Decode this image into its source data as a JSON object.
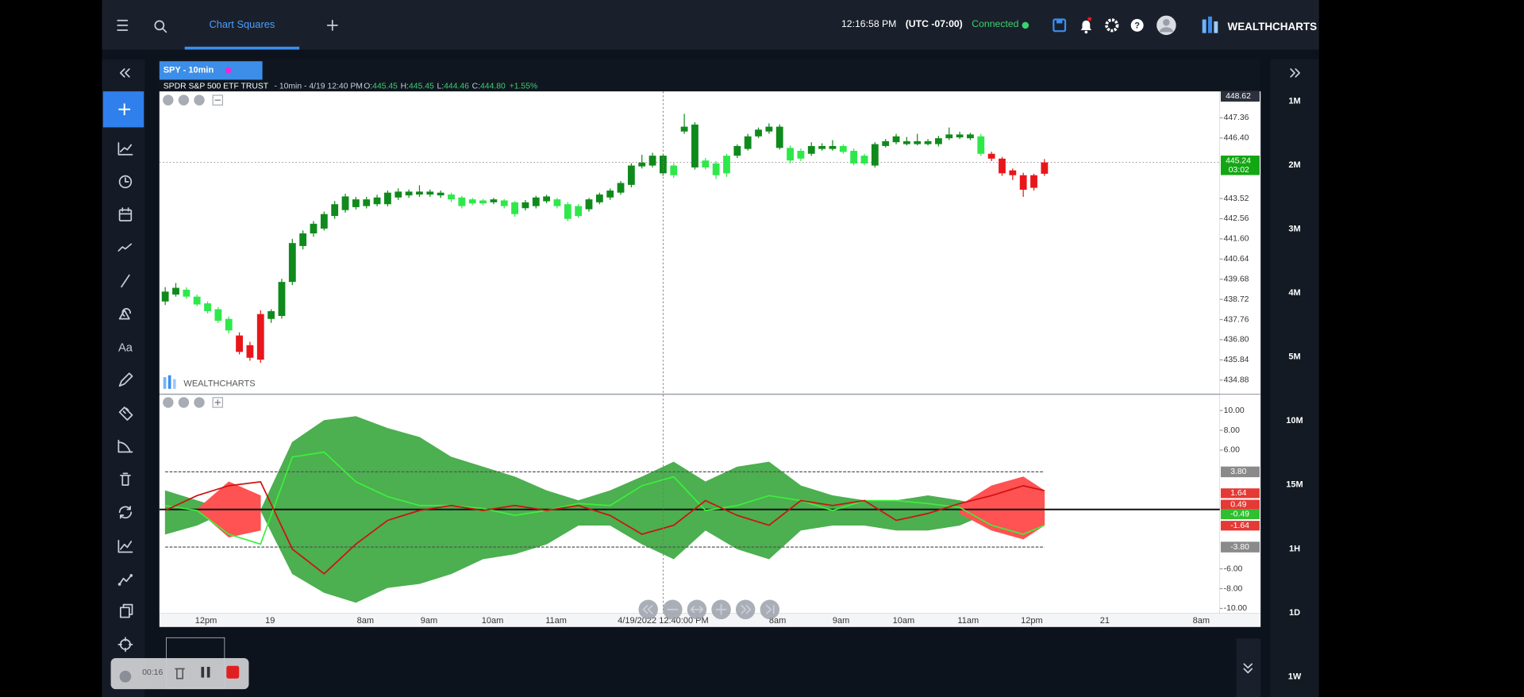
{
  "header": {
    "tab": "Chart Squares",
    "time": "12:16:58 PM",
    "timezone": "(UTC -07:00)",
    "status": "Connected",
    "brand": "WEALTHCHARTS"
  },
  "toolbar": {
    "text_tool": "Aa"
  },
  "chart_tab": "SPY - 10min",
  "timeframes": [
    "1M",
    "2M",
    "3M",
    "4M",
    "5M",
    "10M",
    "15M",
    "1H",
    "1D",
    "1W"
  ],
  "recorder": {
    "elapsed": "00:16"
  },
  "chart_data": [
    {
      "type": "candlestick",
      "title": "SPDR S&P 500 ETF TRUST",
      "subtitle": "- 10min - 4/19 12:40 PM",
      "quote": [
        {
          "name": "O:",
          "value": "445.45"
        },
        {
          "name": "H:",
          "value": "445.45"
        },
        {
          "name": "L:",
          "value": "444.46"
        },
        {
          "name": "C:",
          "value": "444.80"
        },
        {
          "name": "",
          "value": "+1.55%"
        }
      ],
      "watermark": "WEALTHCHARTS",
      "candles": [
        [
          438.62,
          439.3,
          438.45,
          439.09
        ],
        [
          438.95,
          439.5,
          438.85,
          439.27
        ],
        [
          439.18,
          439.3,
          438.75,
          438.85
        ],
        [
          438.85,
          438.95,
          438.4,
          438.48
        ],
        [
          438.53,
          438.62,
          438.05,
          438.16
        ],
        [
          438.25,
          438.35,
          437.6,
          437.7
        ],
        [
          437.79,
          437.9,
          437.1,
          437.24
        ],
        [
          437.0,
          437.15,
          436.1,
          436.22
        ],
        [
          436.54,
          436.7,
          435.8,
          435.94
        ],
        [
          438.02,
          438.2,
          435.7,
          435.85
        ],
        [
          437.79,
          438.25,
          437.6,
          438.16
        ],
        [
          437.93,
          439.7,
          437.8,
          439.55
        ],
        [
          439.55,
          441.6,
          439.4,
          441.4
        ],
        [
          441.26,
          442.0,
          441.1,
          441.86
        ],
        [
          441.86,
          442.45,
          441.7,
          442.32
        ],
        [
          442.09,
          442.9,
          442.0,
          442.78
        ],
        [
          442.69,
          443.4,
          442.55,
          443.25
        ],
        [
          442.97,
          443.75,
          442.85,
          443.62
        ],
        [
          443.11,
          443.6,
          443.0,
          443.48
        ],
        [
          443.16,
          443.6,
          443.05,
          443.48
        ],
        [
          443.25,
          443.7,
          443.15,
          443.57
        ],
        [
          443.25,
          443.9,
          443.15,
          443.8
        ],
        [
          443.57,
          444.0,
          443.45,
          443.85
        ],
        [
          443.67,
          443.95,
          443.55,
          443.85
        ],
        [
          443.71,
          444.15,
          443.6,
          443.85
        ],
        [
          443.71,
          443.95,
          443.6,
          443.85
        ],
        [
          443.67,
          443.9,
          443.55,
          443.8
        ],
        [
          443.71,
          443.8,
          443.35,
          443.48
        ],
        [
          443.57,
          443.65,
          443.05,
          443.16
        ],
        [
          443.48,
          443.55,
          443.2,
          443.29
        ],
        [
          443.43,
          443.5,
          443.2,
          443.29
        ],
        [
          443.34,
          443.55,
          443.25,
          443.48
        ],
        [
          443.43,
          443.5,
          443.05,
          443.16
        ],
        [
          443.34,
          443.4,
          442.65,
          442.78
        ],
        [
          443.06,
          443.45,
          442.95,
          443.34
        ],
        [
          443.16,
          443.65,
          443.05,
          443.57
        ],
        [
          443.39,
          443.7,
          443.3,
          443.62
        ],
        [
          443.48,
          443.55,
          443.05,
          443.16
        ],
        [
          443.25,
          443.35,
          442.45,
          442.55
        ],
        [
          443.16,
          443.25,
          442.6,
          442.69
        ],
        [
          443.01,
          443.55,
          442.9,
          443.48
        ],
        [
          443.34,
          443.8,
          443.25,
          443.71
        ],
        [
          443.57,
          444.0,
          443.45,
          443.9
        ],
        [
          443.8,
          444.35,
          443.7,
          444.26
        ],
        [
          444.17,
          445.2,
          444.05,
          445.09
        ],
        [
          445.05,
          445.6,
          444.95,
          445.23
        ],
        [
          445.09,
          445.7,
          445.0,
          445.56
        ],
        [
          444.72,
          445.65,
          444.6,
          445.56
        ],
        [
          445.09,
          445.2,
          444.5,
          444.63
        ],
        [
          446.71,
          447.55,
          446.6,
          446.94
        ],
        [
          445.0,
          447.15,
          444.9,
          447.04
        ],
        [
          445.33,
          445.45,
          444.9,
          445.0
        ],
        [
          445.19,
          445.3,
          444.45,
          444.63
        ],
        [
          445.56,
          445.65,
          444.55,
          444.72
        ],
        [
          445.56,
          446.1,
          445.45,
          446.02
        ],
        [
          445.88,
          446.6,
          445.8,
          446.48
        ],
        [
          446.48,
          446.9,
          446.4,
          446.8
        ],
        [
          446.71,
          447.1,
          446.6,
          446.94
        ],
        [
          445.93,
          447.05,
          445.85,
          446.94
        ],
        [
          445.93,
          446.05,
          445.2,
          445.33
        ],
        [
          445.79,
          445.9,
          445.3,
          445.42
        ],
        [
          445.65,
          446.2,
          445.55,
          446.02
        ],
        [
          445.88,
          446.15,
          445.8,
          446.02
        ],
        [
          445.88,
          446.3,
          445.8,
          446.02
        ],
        [
          446.02,
          446.1,
          445.65,
          445.74
        ],
        [
          445.79,
          445.9,
          445.1,
          445.19
        ],
        [
          445.56,
          445.65,
          445.1,
          445.19
        ],
        [
          445.09,
          446.2,
          445.0,
          446.11
        ],
        [
          446.02,
          446.35,
          445.95,
          446.25
        ],
        [
          446.2,
          446.6,
          446.1,
          446.48
        ],
        [
          446.11,
          446.45,
          446.05,
          446.25
        ],
        [
          446.11,
          446.6,
          446.05,
          446.25
        ],
        [
          446.11,
          446.35,
          446.05,
          446.25
        ],
        [
          446.11,
          446.5,
          446.0,
          446.39
        ],
        [
          446.39,
          446.9,
          446.3,
          446.57
        ],
        [
          446.43,
          446.7,
          446.35,
          446.57
        ],
        [
          446.39,
          446.65,
          446.3,
          446.57
        ],
        [
          446.48,
          446.6,
          445.55,
          445.65
        ],
        [
          445.65,
          445.75,
          445.3,
          445.42
        ],
        [
          445.42,
          445.5,
          444.6,
          444.72
        ],
        [
          444.86,
          444.95,
          444.4,
          444.63
        ],
        [
          444.63,
          444.75,
          443.6,
          443.94
        ],
        [
          444.63,
          444.7,
          443.9,
          444.03
        ],
        [
          444.7,
          445.4,
          444.6,
          445.24
        ]
      ],
      "colors": [
        "#108a1c",
        "#108a1c",
        "#2ee84a",
        "#2ee84a",
        "#2ee84a",
        "#2ee84a",
        "#2ee84a",
        "#e8161b",
        "#e8161b",
        "#e8161b",
        "#108a1c",
        "#108a1c",
        "#108a1c",
        "#108a1c",
        "#108a1c",
        "#108a1c",
        "#108a1c",
        "#108a1c",
        "#108a1c",
        "#108a1c",
        "#108a1c",
        "#108a1c",
        "#108a1c",
        "#108a1c",
        "#108a1c",
        "#108a1c",
        "#108a1c",
        "#2ee84a",
        "#2ee84a",
        "#2ee84a",
        "#2ee84a",
        "#108a1c",
        "#2ee84a",
        "#2ee84a",
        "#108a1c",
        "#108a1c",
        "#108a1c",
        "#2ee84a",
        "#2ee84a",
        "#2ee84a",
        "#108a1c",
        "#108a1c",
        "#108a1c",
        "#108a1c",
        "#108a1c",
        "#108a1c",
        "#108a1c",
        "#108a1c",
        "#2ee84a",
        "#108a1c",
        "#108a1c",
        "#2ee84a",
        "#2ee84a",
        "#2ee84a",
        "#108a1c",
        "#108a1c",
        "#108a1c",
        "#108a1c",
        "#108a1c",
        "#2ee84a",
        "#2ee84a",
        "#108a1c",
        "#108a1c",
        "#108a1c",
        "#2ee84a",
        "#2ee84a",
        "#2ee84a",
        "#108a1c",
        "#108a1c",
        "#108a1c",
        "#108a1c",
        "#108a1c",
        "#108a1c",
        "#108a1c",
        "#108a1c",
        "#108a1c",
        "#108a1c",
        "#2ee84a",
        "#e8161b",
        "#e8161b",
        "#e8161b",
        "#e8161b",
        "#e8161b",
        "#e8161b"
      ],
      "xlim": [
        -0.55,
        99.55
      ],
      "xticks": [
        {
          "value": 3.85,
          "label": "12pm"
        },
        {
          "value": 9.9,
          "label": "19"
        },
        {
          "value": 18.9,
          "label": "8am"
        },
        {
          "value": 24.9,
          "label": "9am"
        },
        {
          "value": 30.9,
          "label": "10am"
        },
        {
          "value": 36.9,
          "label": "11am"
        },
        {
          "value": 57.8,
          "label": "8am"
        },
        {
          "value": 63.8,
          "label": "9am"
        },
        {
          "value": 69.7,
          "label": "10am"
        },
        {
          "value": 75.8,
          "label": "11am"
        },
        {
          "value": 81.8,
          "label": "12pm"
        },
        {
          "value": 88.7,
          "label": "21"
        },
        {
          "value": 97.8,
          "label": "8am"
        }
      ],
      "ylim": [
        434.23,
        448.62
      ],
      "yticks": [
        447.36,
        {
          "value": 446.4,
          "label": "446.40"
        },
        443.52,
        442.56,
        {
          "value": 441.6,
          "label": "441.60"
        },
        440.64,
        439.68,
        438.72,
        437.76,
        {
          "value": 436.8,
          "label": "436.80"
        },
        435.84,
        434.88
      ],
      "high_label": 448.62,
      "last_price": {
        "value": 445.24,
        "countdown": "03:02",
        "color": "#13a613"
      },
      "crosshair": {
        "value": 47,
        "label": "4/19/2022 12:40:00 PM"
      }
    },
    {
      "type": "line",
      "x": [
        0,
        3,
        6,
        9,
        12,
        15,
        18,
        21,
        24,
        27,
        30,
        33,
        36,
        39,
        42,
        45,
        48,
        51,
        54,
        57,
        60,
        63,
        66,
        69,
        72,
        75,
        78,
        81,
        83
      ],
      "areas": [
        {
          "color": "#4caf50",
          "upper": [
            1.9,
            0.9,
            -0.1,
            -0.1,
            6.8,
            9.0,
            9.4,
            8.2,
            7.3,
            5.3,
            4.3,
            3.3,
            1.9,
            0.9,
            1.9,
            3.3,
            4.8,
            2.8,
            4.3,
            4.8,
            2.4,
            1.4,
            0.9,
            0.9,
            1.4,
            0.9,
            0.2,
            0,
            0
          ],
          "lower": [
            -2.5,
            -1.6,
            -0.1,
            -0.1,
            -6.5,
            -8.4,
            -9.4,
            -7.9,
            -7.5,
            -6.5,
            -5.0,
            -4.5,
            -3.5,
            -1.6,
            -1.6,
            -3.5,
            -5.0,
            -2.1,
            -4.0,
            -5.0,
            -2.1,
            -1.6,
            -1.6,
            -2.1,
            -2.1,
            -1.6,
            -0.2,
            0,
            0
          ]
        },
        {
          "color": "#ff5252",
          "upper": [
            null,
            0,
            2.8,
            1.4,
            null,
            null,
            null,
            null,
            null,
            null,
            null,
            null,
            null,
            null,
            null,
            null,
            null,
            null,
            null,
            null,
            null,
            null,
            null,
            null,
            null,
            0.4,
            2.4,
            3.3,
            1.9
          ],
          "lower": [
            null,
            0,
            -2.8,
            -2.1,
            null,
            null,
            null,
            null,
            null,
            null,
            null,
            null,
            null,
            null,
            null,
            null,
            null,
            null,
            null,
            null,
            null,
            null,
            null,
            null,
            null,
            -0.4,
            -2.1,
            -3.0,
            -1.6
          ]
        }
      ],
      "series": [
        {
          "color": "#3cf03c",
          "values": [
            0.4,
            -0.1,
            -2.5,
            -3.5,
            5.3,
            5.8,
            2.8,
            1.3,
            0.4,
            0.4,
            0.1,
            -0.6,
            -0.1,
            0.6,
            0.4,
            2.4,
            3.3,
            -0.1,
            0.4,
            1.4,
            0.9,
            -0.1,
            0.9,
            0.9,
            0.6,
            0.2,
            -1.6,
            -2.5,
            -1.6
          ]
        },
        {
          "color": "#d01010",
          "values": [
            -0.1,
            1.4,
            2.4,
            2.8,
            -4.0,
            -6.5,
            -3.5,
            -1.1,
            -0.1,
            0.4,
            -0.1,
            0.4,
            -0.1,
            0.4,
            -0.6,
            -2.5,
            -1.6,
            0.9,
            -0.6,
            -1.6,
            0.9,
            0.4,
            0.9,
            -1.1,
            -0.4,
            0.6,
            1.4,
            2.4,
            1.9
          ]
        }
      ],
      "levels": [
        {
          "value": 3.8,
          "label": "3.80"
        },
        {
          "value": -3.8,
          "label": "-3.80"
        }
      ],
      "level_color": "#8a8a8a",
      "markers": [
        {
          "value": 1.64,
          "color": "#e53935"
        },
        {
          "value": 0.49,
          "color": "#e53935"
        },
        {
          "value": -0.49,
          "color": "#2fbf2f"
        },
        {
          "value": -1.64,
          "color": "#e53935"
        }
      ],
      "ylim": [
        -10.5,
        11.6
      ],
      "yticks": [
        {
          "value": 10,
          "label": "10.00"
        },
        {
          "value": 8,
          "label": "8.00"
        },
        {
          "value": 6,
          "label": "6.00"
        },
        {
          "value": -6,
          "label": "-6.00"
        },
        {
          "value": -8,
          "label": "-8.00"
        },
        {
          "value": -10,
          "label": "-10.00"
        }
      ]
    }
  ]
}
